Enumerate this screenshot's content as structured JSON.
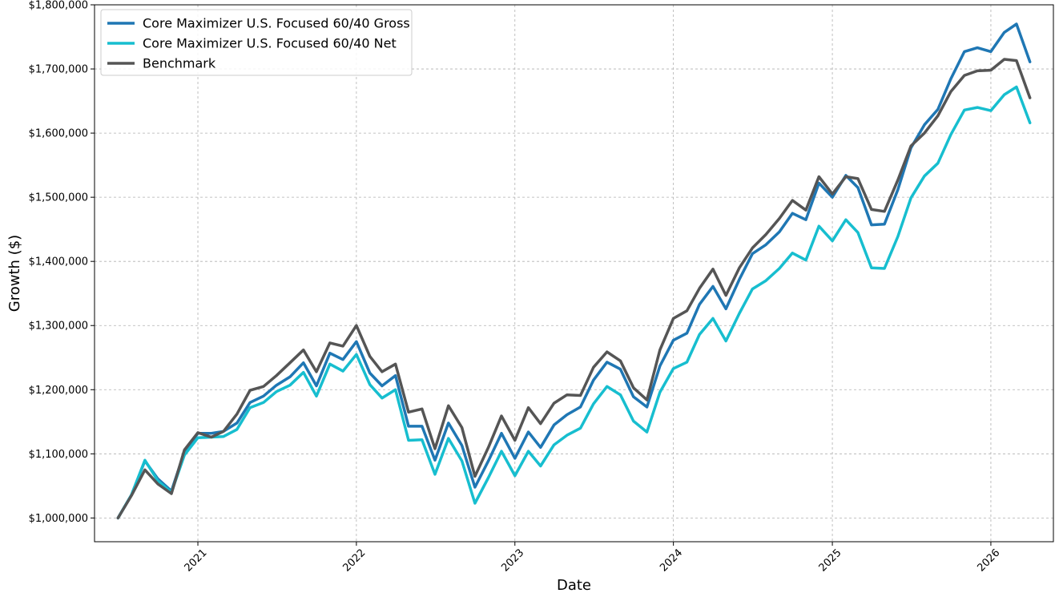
{
  "chart_data": {
    "type": "line",
    "title": "",
    "xlabel": "Date",
    "ylabel": "Growth ($)",
    "x_start": "2020-07",
    "xlim": [
      "2020-05-08",
      "2026-05-25"
    ],
    "ylim": [
      963000,
      1800000
    ],
    "x_ticks": [
      {
        "date": "2021-01",
        "label": "2021"
      },
      {
        "date": "2022-01",
        "label": "2022"
      },
      {
        "date": "2023-01",
        "label": "2023"
      },
      {
        "date": "2024-01",
        "label": "2024"
      },
      {
        "date": "2025-01",
        "label": "2025"
      },
      {
        "date": "2026-01",
        "label": "2026"
      }
    ],
    "y_ticks": [
      {
        "value": 1000000,
        "label": "$1,000,000"
      },
      {
        "value": 1100000,
        "label": "$1,100,000"
      },
      {
        "value": 1200000,
        "label": "$1,200,000"
      },
      {
        "value": 1300000,
        "label": "$1,300,000"
      },
      {
        "value": 1400000,
        "label": "$1,400,000"
      },
      {
        "value": 1500000,
        "label": "$1,500,000"
      },
      {
        "value": 1600000,
        "label": "$1,600,000"
      },
      {
        "value": 1700000,
        "label": "$1,700,000"
      },
      {
        "value": 1800000,
        "label": "$1,800,000"
      }
    ],
    "grid": true,
    "legend_position": "top-left",
    "series": [
      {
        "name": "Core Maximizer U.S. Focused 60/40 Gross",
        "color": "#1f77b4",
        "values": [
          1000000,
          1036000,
          1089000,
          1061000,
          1042000,
          1103000,
          1132000,
          1132000,
          1135000,
          1148000,
          1180000,
          1190000,
          1207000,
          1220000,
          1242000,
          1206000,
          1257000,
          1247000,
          1275000,
          1226000,
          1206000,
          1222000,
          1143000,
          1143000,
          1090000,
          1148000,
          1113000,
          1048000,
          1089000,
          1132000,
          1093000,
          1134000,
          1110000,
          1145000,
          1161000,
          1173000,
          1215000,
          1243000,
          1232000,
          1189000,
          1173000,
          1237000,
          1277000,
          1288000,
          1333000,
          1361000,
          1326000,
          1372000,
          1412000,
          1426000,
          1446000,
          1475000,
          1465000,
          1522000,
          1500000,
          1534000,
          1515000,
          1457000,
          1458000,
          1512000,
          1577000,
          1613000,
          1637000,
          1685000,
          1727000,
          1733000,
          1727000,
          1757000,
          1770000,
          1711000
        ]
      },
      {
        "name": "Core Maximizer U.S. Focused 60/40 Net",
        "color": "#17becf",
        "values": [
          1000000,
          1036000,
          1090000,
          1058000,
          1040000,
          1098000,
          1125000,
          1126000,
          1127000,
          1138000,
          1172000,
          1180000,
          1197000,
          1207000,
          1227000,
          1190000,
          1240000,
          1229000,
          1255000,
          1208000,
          1187000,
          1200000,
          1121000,
          1122000,
          1068000,
          1124000,
          1089000,
          1023000,
          1063000,
          1104000,
          1066000,
          1104000,
          1081000,
          1114000,
          1129000,
          1140000,
          1178000,
          1205000,
          1192000,
          1151000,
          1134000,
          1196000,
          1233000,
          1243000,
          1286000,
          1311000,
          1276000,
          1319000,
          1357000,
          1370000,
          1389000,
          1413000,
          1402000,
          1455000,
          1432000,
          1465000,
          1445000,
          1390000,
          1389000,
          1439000,
          1499000,
          1533000,
          1553000,
          1598000,
          1636000,
          1640000,
          1635000,
          1660000,
          1672000,
          1616000
        ]
      },
      {
        "name": "Benchmark",
        "color": "#555555",
        "values": [
          1000000,
          1035000,
          1075000,
          1053000,
          1038000,
          1106000,
          1133000,
          1126000,
          1135000,
          1162000,
          1199000,
          1205000,
          1222000,
          1242000,
          1262000,
          1228000,
          1273000,
          1268000,
          1300000,
          1252000,
          1228000,
          1240000,
          1165000,
          1170000,
          1108000,
          1175000,
          1141000,
          1065000,
          1110000,
          1159000,
          1121000,
          1172000,
          1147000,
          1179000,
          1192000,
          1191000,
          1235000,
          1259000,
          1245000,
          1203000,
          1184000,
          1262000,
          1311000,
          1323000,
          1358000,
          1388000,
          1347000,
          1390000,
          1421000,
          1442000,
          1467000,
          1495000,
          1480000,
          1532000,
          1505000,
          1532000,
          1529000,
          1481000,
          1478000,
          1527000,
          1580000,
          1600000,
          1627000,
          1665000,
          1690000,
          1697000,
          1698000,
          1715000,
          1713000,
          1655000
        ]
      }
    ]
  }
}
